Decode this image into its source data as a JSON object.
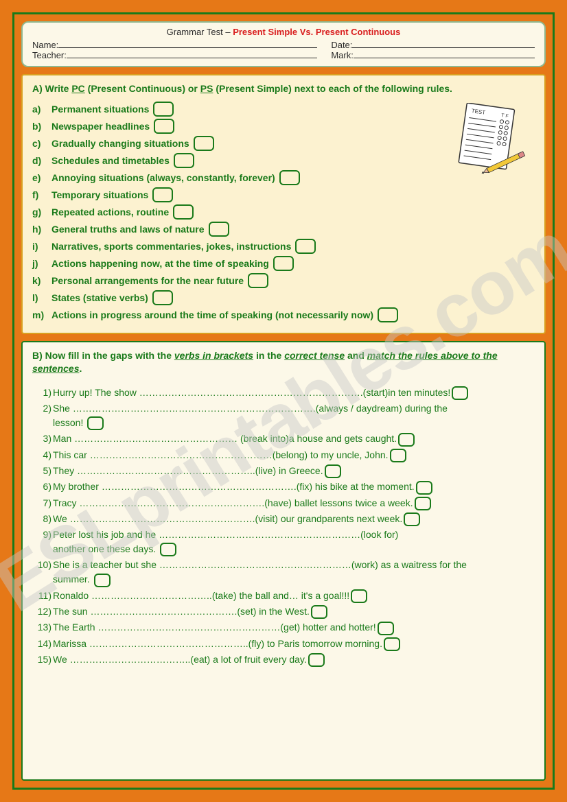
{
  "header": {
    "title_prefix": "Grammar Test – ",
    "title_red": "Present Simple Vs. Present Continuous",
    "name_label": "Name:",
    "date_label": "Date:",
    "teacher_label": "Teacher:",
    "mark_label": "Mark:"
  },
  "sectionA": {
    "instr_1": "A) Write ",
    "instr_pc": "PC",
    "instr_2": " (Present Continuous) or ",
    "instr_ps": "PS",
    "instr_3": " (Present Simple) next to each of the following rules.",
    "rules": [
      {
        "letter": "a)",
        "text": "Permanent situations"
      },
      {
        "letter": "b)",
        "text": "Newspaper headlines"
      },
      {
        "letter": "c)",
        "text": "Gradually changing situations"
      },
      {
        "letter": "d)",
        "text": "Schedules and timetables"
      },
      {
        "letter": "e)",
        "text": "Annoying situations (always, constantly, forever)"
      },
      {
        "letter": "f)",
        "text": "Temporary situations"
      },
      {
        "letter": "g)",
        "text": "Repeated actions, routine"
      },
      {
        "letter": "h)",
        "text": "General truths and laws of nature"
      },
      {
        "letter": "i)",
        "text": "Narratives, sports commentaries, jokes, instructions"
      },
      {
        "letter": "j)",
        "text": "Actions happening now, at the time of speaking"
      },
      {
        "letter": "k)",
        "text": "Personal arrangements for the near future"
      },
      {
        "letter": "l)",
        "text": "States (stative verbs)"
      },
      {
        "letter": "m)",
        "text": "Actions in progress around the time of speaking (not necessarily now)"
      }
    ]
  },
  "sectionB": {
    "instr_1": "B) Now fill in the gaps with the ",
    "instr_u1": "verbs in brackets",
    "instr_2": " in the ",
    "instr_u2": "correct tense",
    "instr_3": " and ",
    "instr_u3": "match the rules above to the sentences",
    "instr_4": ".",
    "questions": [
      {
        "n": "1)",
        "pre": "Hurry up! The show ",
        "dots": "……………………………………………………………",
        "post": ".(start)in ten minutes!",
        "box_inline": true
      },
      {
        "n": "2)",
        "pre": "She ",
        "dots": "…………………………………………………………………",
        "post": ".(always / daydream) during the",
        "cont": "lesson!",
        "box_after_cont": true
      },
      {
        "n": "3)",
        "pre": "Man ",
        "dots": "……………………………………………",
        "post": " (break into)a house and gets caught.",
        "box_inline": true
      },
      {
        "n": "4)",
        "pre": "This car ",
        "dots": "…………………………………………………",
        "post": "(belong) to my uncle, John.",
        "box_inline": true
      },
      {
        "n": "5)",
        "pre": "They ",
        "dots": "………………………………………………",
        "post": "..(live) in Greece.",
        "box_inline": true
      },
      {
        "n": "6)",
        "pre": "My brother ",
        "dots": "……………………………………………………",
        "post": ".(fix) his bike at the moment.",
        "box_inline": true
      },
      {
        "n": "7)",
        "pre": "Tracy ",
        "dots": "…………………………………………………",
        "post": ".(have) ballet lessons twice a week.",
        "box_inline": true
      },
      {
        "n": "8)",
        "pre": "We ",
        "dots": "…………………………………………………",
        "post": ".(visit) our grandparents next week.",
        "box_inline": true
      },
      {
        "n": "9)",
        "pre": "Peter lost his job and he ",
        "dots": "………………………………………………………",
        "post": "(look for)",
        "cont": "another one these days.",
        "box_after_cont": true
      },
      {
        "n": "10)",
        "pre": "She is a teacher but she ",
        "dots": "……………………………………………………",
        "post": "(work) as a waitress for the",
        "cont": "summer.",
        "box_after_cont": true
      },
      {
        "n": "11)",
        "pre": "Ronaldo ",
        "dots": "………………………………",
        "post": "..(take) the ball and… it's a goal!!!",
        "box_inline": true
      },
      {
        "n": "12)",
        "pre": "The sun ",
        "dots": "………………………………………",
        "post": ".(set) in the West.",
        "box_inline": true
      },
      {
        "n": "13)",
        "pre": "The Earth ",
        "dots": "…………………………………………………",
        "post": "(get) hotter and hotter!",
        "box_inline": true
      },
      {
        "n": "14)",
        "pre": "Marissa ",
        "dots": "…………………………………………",
        "post": "..(fly) to Paris tomorrow morning.",
        "box_inline": true
      },
      {
        "n": "15)",
        "pre": "We ",
        "dots": "………………………………",
        "post": "..(eat) a lot of fruit every day.",
        "box_inline": true
      }
    ]
  },
  "watermark": "ESLprintables.com",
  "colors": {
    "page_bg": "#e67817",
    "border_green": "#1a7a1a",
    "header_bg": "#fcf8e8",
    "header_border": "#8fb88f",
    "red": "#d91e1e",
    "sectionA_bg": "#fcf2d0",
    "sectionA_border": "#d9a020",
    "sectionB_bg": "#fcf8e8",
    "text_green": "#1a7a1a"
  }
}
